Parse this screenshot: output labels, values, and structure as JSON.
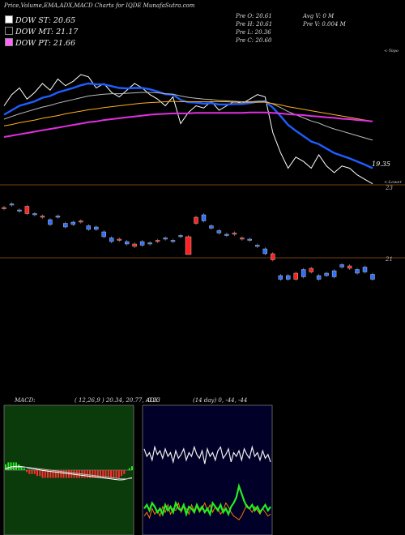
{
  "header": {
    "title": "Price,Volume,EMA,ADX,MACD Charts for IQDE MunafaSutra.com"
  },
  "legend": [
    {
      "label": "DOW ST: 20.65",
      "color": "#ffffff"
    },
    {
      "label": "DOW MT: 21.17",
      "color": "#000000"
    },
    {
      "label": "DOW PT: 21.66",
      "color": "#ff66ff"
    }
  ],
  "quote": {
    "open": "Pre   O: 20.61",
    "high": "Pre   H: 20.61",
    "low": "Pre   L: 20.36",
    "close": "Pre   C: 20.60",
    "avg_vol": "Avg V: 0  M",
    "prev_vol": "Pre   V: 0.004  M"
  },
  "labels": {
    "price_last": "19.35",
    "topo": "<-Topo",
    "lower": "<-Lower",
    "v23": "23",
    "v21": "21"
  },
  "macd": {
    "title": "MACD:",
    "params": "( 12,26,9 ) 20.34, 20.77, -0.23"
  },
  "adx": {
    "title": "ADX",
    "params": "(14  day) 0, -44, -44"
  },
  "colors": {
    "ema_fast": "#1e5eff",
    "ema_slow": "#ffb020",
    "ema_long": "#e030e0",
    "up": "#2f6fff",
    "down": "#ff2020",
    "adx_plus": "#22ee22",
    "adx_minus": "#ff7700",
    "macd_bg": "#0b3a0b",
    "adx_bg": "#000028"
  },
  "chart_data": {
    "type": "line",
    "series": [
      {
        "values": [
          21.1,
          21.35,
          21.5,
          21.25,
          21.4,
          21.6,
          21.45,
          21.7,
          21.55,
          21.65,
          21.8,
          21.75,
          21.5,
          21.6,
          21.4,
          21.3,
          21.45,
          21.6,
          21.5,
          21.35,
          21.25,
          21.1,
          21.3,
          20.7,
          20.95,
          21.1,
          21.05,
          21.2,
          21.0,
          21.1,
          21.2,
          21.15,
          21.25,
          21.35,
          21.3,
          20.5,
          20.05,
          19.7,
          19.95,
          19.85,
          19.7,
          20.0,
          19.75,
          19.6,
          19.75,
          19.7,
          19.55,
          19.45,
          19.35
        ]
      },
      {
        "values": [
          20.9,
          21.0,
          21.1,
          21.15,
          21.2,
          21.28,
          21.32,
          21.4,
          21.45,
          21.5,
          21.56,
          21.6,
          21.58,
          21.58,
          21.54,
          21.5,
          21.49,
          21.5,
          21.5,
          21.47,
          21.42,
          21.36,
          21.35,
          21.23,
          21.18,
          21.17,
          21.15,
          21.16,
          21.13,
          21.13,
          21.14,
          21.14,
          21.16,
          21.19,
          21.2,
          21.06,
          20.87,
          20.67,
          20.54,
          20.42,
          20.3,
          20.24,
          20.14,
          20.04,
          19.98,
          19.92,
          19.85,
          19.78,
          19.7
        ]
      },
      {
        "values": [
          20.8,
          20.86,
          20.92,
          20.97,
          21.02,
          21.07,
          21.11,
          21.16,
          21.2,
          21.24,
          21.28,
          21.32,
          21.34,
          21.36,
          21.37,
          21.37,
          21.38,
          21.39,
          21.4,
          21.4,
          21.39,
          21.37,
          21.36,
          21.32,
          21.29,
          21.27,
          21.25,
          21.24,
          21.22,
          21.21,
          21.2,
          21.19,
          21.19,
          21.2,
          21.2,
          21.14,
          21.06,
          20.97,
          20.9,
          20.83,
          20.76,
          20.71,
          20.64,
          20.58,
          20.53,
          20.48,
          20.43,
          20.38,
          20.33
        ]
      },
      {
        "values": [
          20.65,
          20.68,
          20.72,
          20.75,
          20.78,
          20.82,
          20.85,
          20.88,
          20.92,
          20.95,
          20.98,
          21.01,
          21.03,
          21.06,
          21.08,
          21.1,
          21.12,
          21.14,
          21.16,
          21.17,
          21.18,
          21.19,
          21.2,
          21.19,
          21.19,
          21.19,
          21.19,
          21.19,
          21.19,
          21.19,
          21.18,
          21.18,
          21.18,
          21.18,
          21.18,
          21.15,
          21.12,
          21.08,
          21.05,
          21.02,
          20.99,
          20.96,
          20.93,
          20.9,
          20.87,
          20.84,
          20.81,
          20.78,
          20.75
        ]
      },
      {
        "values": [
          20.4,
          20.43,
          20.46,
          20.49,
          20.52,
          20.55,
          20.58,
          20.61,
          20.64,
          20.67,
          20.7,
          20.73,
          20.75,
          20.78,
          20.8,
          20.82,
          20.84,
          20.86,
          20.88,
          20.9,
          20.91,
          20.92,
          20.93,
          20.93,
          20.93,
          20.94,
          20.94,
          20.94,
          20.94,
          20.94,
          20.94,
          20.94,
          20.95,
          20.95,
          20.95,
          20.94,
          20.93,
          20.91,
          20.9,
          20.89,
          20.87,
          20.86,
          20.84,
          20.83,
          20.81,
          20.8,
          20.78,
          20.77,
          20.75
        ]
      }
    ],
    "candles": [
      [
        0.2,
        0.15
      ],
      [
        0.35,
        0.3
      ],
      [
        0.1,
        0.05
      ],
      [
        0.25,
        -0.05
      ],
      [
        -0.05,
        -0.1
      ],
      [
        -0.15,
        -0.2
      ],
      [
        -0.3,
        -0.5
      ],
      [
        -0.15,
        -0.2
      ],
      [
        -0.45,
        -0.6
      ],
      [
        -0.4,
        -0.5
      ],
      [
        -0.35,
        -0.4
      ],
      [
        -0.55,
        -0.7
      ],
      [
        -0.6,
        -0.7
      ],
      [
        -0.8,
        -1.0
      ],
      [
        -1.05,
        -1.2
      ],
      [
        -1.1,
        -1.15
      ],
      [
        -1.2,
        -1.3
      ],
      [
        -1.3,
        -1.4
      ],
      [
        -1.2,
        -1.35
      ],
      [
        -1.25,
        -1.3
      ],
      [
        -1.15,
        -1.2
      ],
      [
        -1.05,
        -1.1
      ],
      [
        -1.15,
        -1.2
      ],
      [
        -0.95,
        -1.0
      ],
      [
        -1.0,
        -1.1
      ],
      [
        -0.2,
        -0.45
      ],
      [
        -0.1,
        -0.35
      ],
      [
        -0.55,
        -0.65
      ],
      [
        -0.75,
        -0.85
      ],
      [
        -0.9,
        -0.95
      ],
      [
        -0.85,
        -0.9
      ],
      [
        -1.05,
        -1.1
      ],
      [
        -1.1,
        -1.15
      ],
      [
        -1.35,
        -1.4
      ],
      [
        -1.5,
        -1.7
      ],
      [
        -1.7,
        -1.95
      ],
      [
        -2.6,
        -2.75
      ],
      [
        -2.6,
        -2.75
      ],
      [
        -2.5,
        -2.75
      ],
      [
        -2.35,
        -2.65
      ],
      [
        -2.3,
        -2.45
      ],
      [
        -2.6,
        -2.75
      ],
      [
        -2.5,
        -2.6
      ],
      [
        -2.4,
        -2.65
      ],
      [
        -2.15,
        -2.25
      ],
      [
        -2.2,
        -2.3
      ],
      [
        -2.35,
        -2.5
      ],
      [
        -2.25,
        -2.45
      ],
      [
        -2.55,
        -2.75
      ]
    ],
    "macd_line": [
      0.05,
      0.08,
      0.1,
      0.11,
      0.12,
      0.12,
      0.11,
      0.1,
      0.08,
      0.06,
      0.05,
      0.04,
      0.02,
      0.01,
      -0.01,
      -0.02,
      -0.03,
      -0.04,
      -0.05,
      -0.06,
      -0.07,
      -0.08,
      -0.09,
      -0.1,
      -0.11,
      -0.12,
      -0.13,
      -0.14,
      -0.15,
      -0.16,
      -0.17,
      -0.18,
      -0.19,
      -0.2,
      -0.21,
      -0.22,
      -0.23,
      -0.24,
      -0.25,
      -0.26,
      -0.27,
      -0.28,
      -0.29,
      -0.3,
      -0.3,
      -0.29,
      -0.27,
      -0.25,
      -0.23
    ],
    "macd_signal": [
      0.02,
      0.04,
      0.06,
      0.07,
      0.08,
      0.09,
      0.09,
      0.09,
      0.09,
      0.08,
      0.07,
      0.06,
      0.05,
      0.04,
      0.03,
      0.02,
      0.01,
      0.0,
      -0.01,
      -0.02,
      -0.03,
      -0.04,
      -0.05,
      -0.06,
      -0.07,
      -0.08,
      -0.09,
      -0.1,
      -0.11,
      -0.12,
      -0.13,
      -0.14,
      -0.15,
      -0.16,
      -0.17,
      -0.18,
      -0.19,
      -0.2,
      -0.21,
      -0.22,
      -0.23,
      -0.24,
      -0.25,
      -0.26,
      -0.27,
      -0.27,
      -0.27,
      -0.26,
      -0.25
    ],
    "adx_di": [
      44,
      40,
      42,
      38,
      45,
      41,
      43,
      39,
      44,
      40,
      42,
      37,
      43,
      39,
      41,
      44,
      38,
      42,
      40,
      45,
      41,
      39,
      43,
      36,
      44,
      40,
      42,
      38,
      43,
      45,
      39,
      41,
      44,
      37,
      42,
      40,
      43,
      38,
      44,
      41,
      39,
      45,
      40,
      42,
      38,
      43,
      39,
      41,
      37
    ],
    "adx_plus": [
      12,
      14,
      11,
      15,
      13,
      10,
      12,
      9,
      14,
      11,
      13,
      10,
      15,
      12,
      11,
      14,
      9,
      13,
      12,
      10,
      14,
      11,
      13,
      10,
      12,
      9,
      15,
      13,
      11,
      14,
      10,
      12,
      9,
      13,
      15,
      18,
      24,
      20,
      16,
      13,
      12,
      14,
      11,
      13,
      10,
      12,
      14,
      11,
      13
    ],
    "adx_minus": [
      8,
      10,
      7,
      12,
      9,
      11,
      8,
      13,
      10,
      14,
      9,
      12,
      11,
      15,
      10,
      13,
      12,
      9,
      14,
      11,
      13,
      10,
      12,
      15,
      11,
      14,
      10,
      13,
      12,
      9,
      11,
      15,
      13,
      10,
      8,
      7,
      6,
      8,
      11,
      14,
      12,
      10,
      13,
      11,
      9,
      12,
      10,
      8,
      9
    ]
  }
}
